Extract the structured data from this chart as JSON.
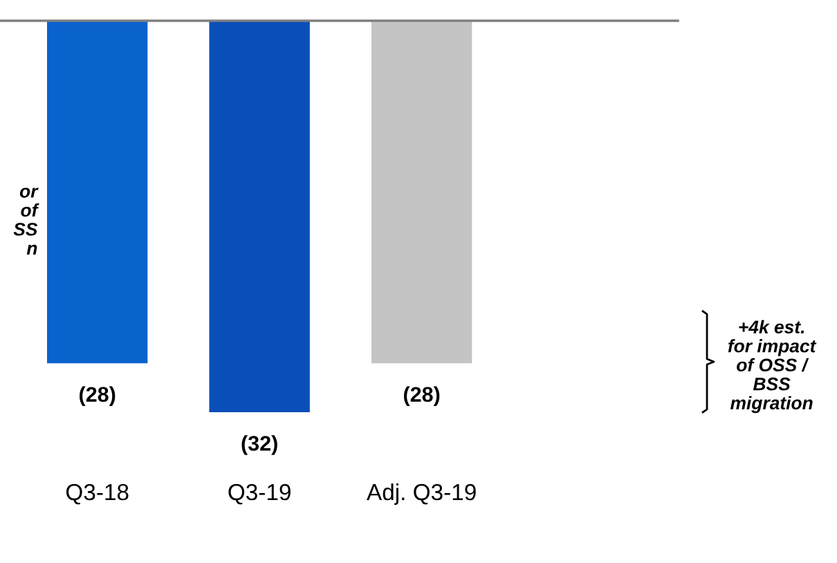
{
  "chart_data": {
    "type": "bar",
    "categories": [
      "Q3-18",
      "Q3-19",
      "Adj. Q3-19"
    ],
    "values": [
      -28,
      -32,
      -28
    ],
    "colors": [
      "#0a62cc",
      "#0a4fb8",
      "#c4c4c4"
    ],
    "value_labels": [
      "(28)",
      "(32)",
      "(28)"
    ],
    "annotations": [
      "+4k est.\nfor impact\nof OSS /\nBSS\nmigration",
      "or\nof\nSS\nn"
    ],
    "grid": false,
    "legend": false
  }
}
